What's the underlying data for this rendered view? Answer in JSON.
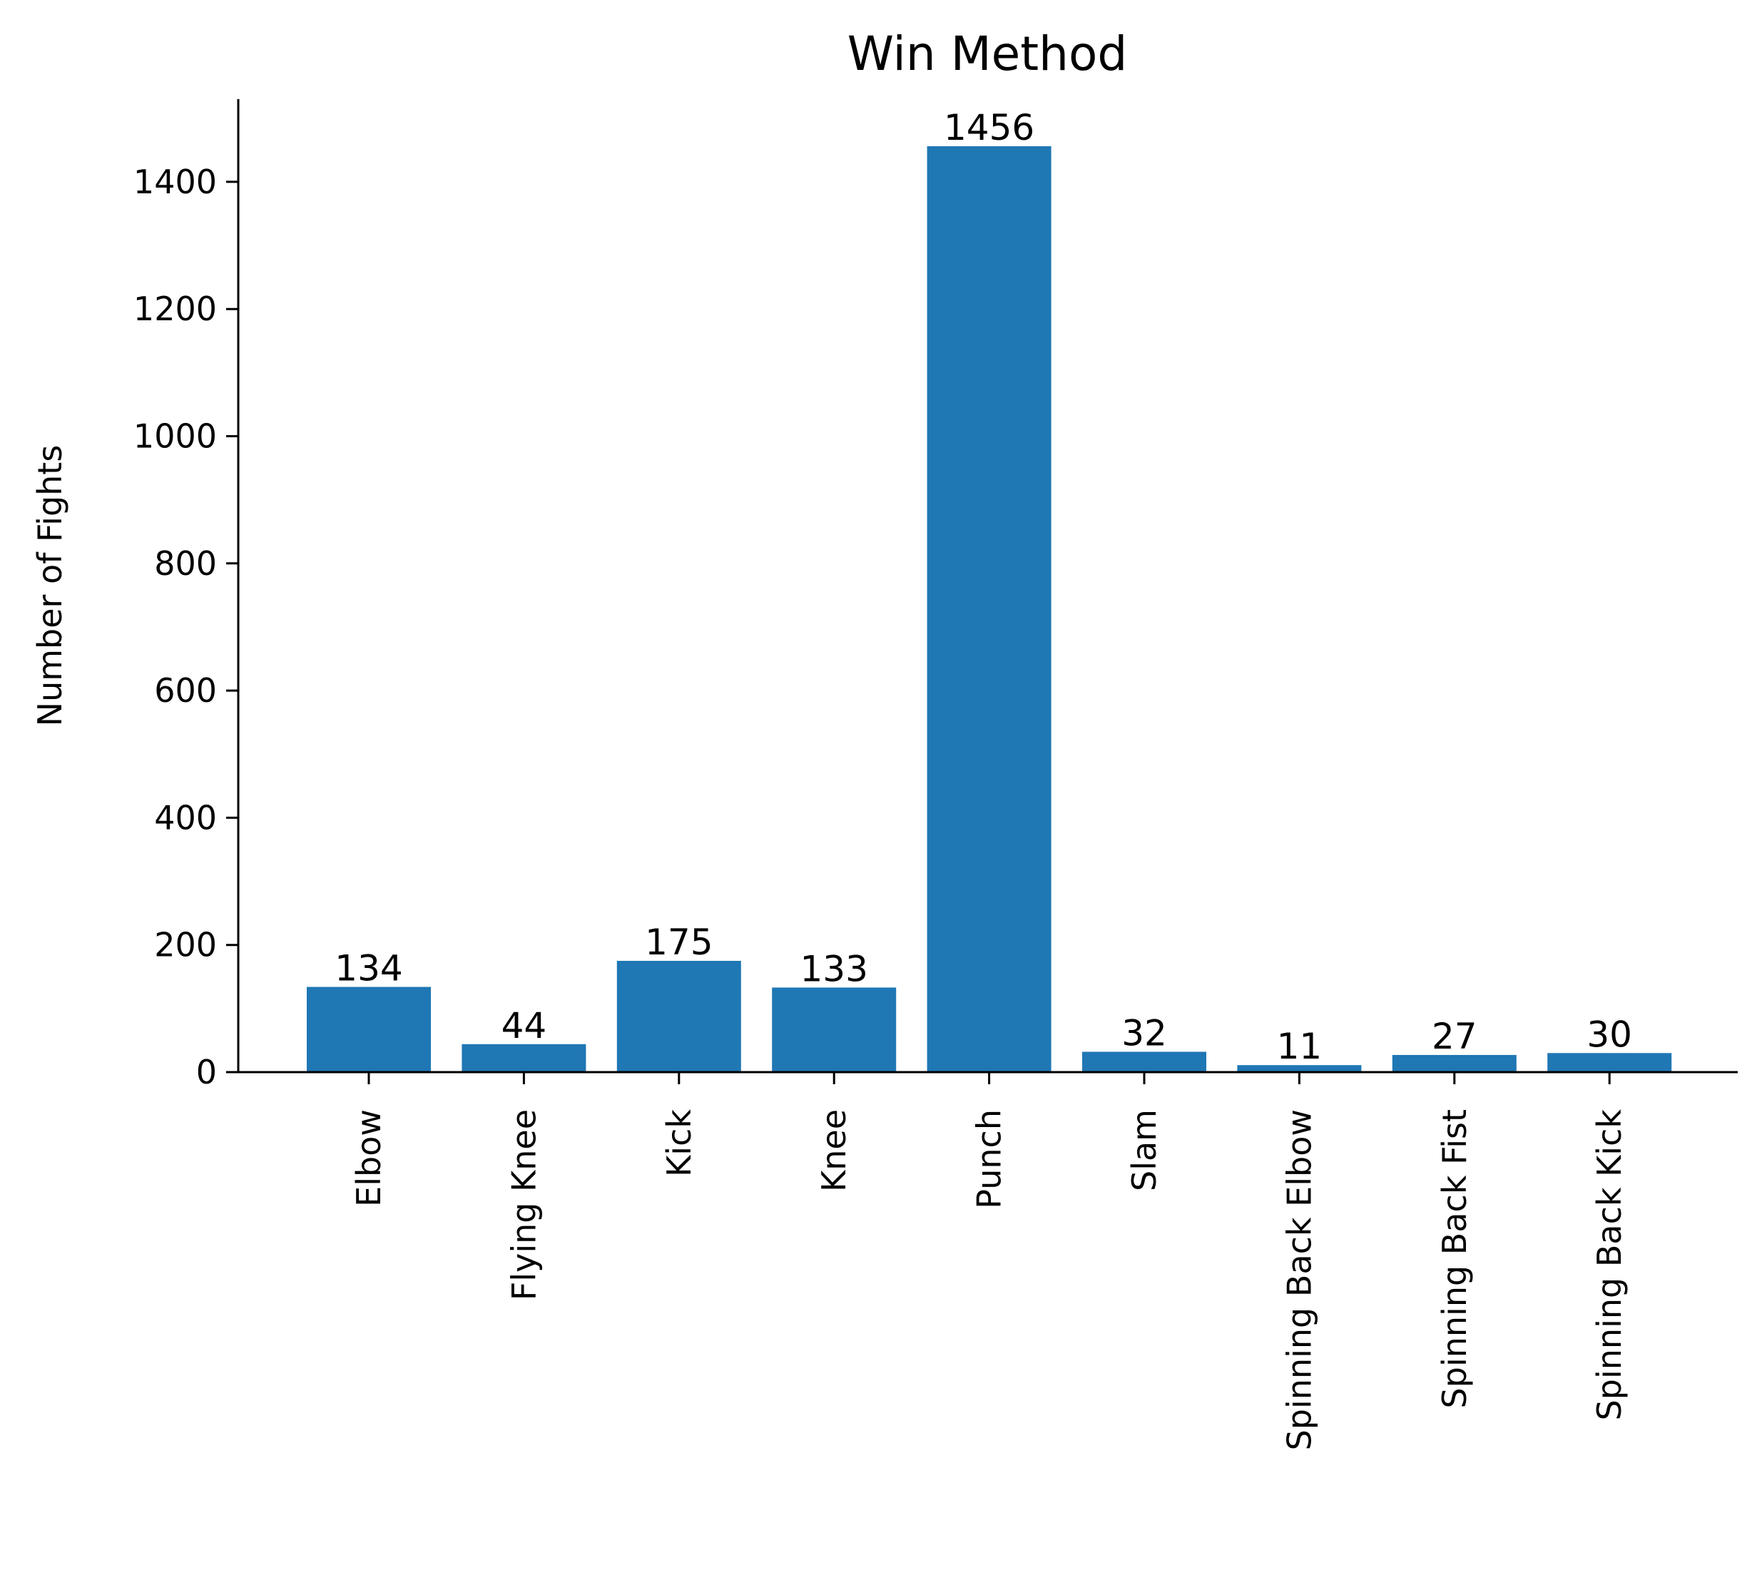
{
  "chart_data": {
    "type": "bar",
    "title": "Win Method",
    "xlabel": "",
    "ylabel": "Number of Fights",
    "categories": [
      "Elbow",
      "Flying Knee",
      "Kick",
      "Knee",
      "Punch",
      "Slam",
      "Spinning Back Elbow",
      "Spinning Back Fist",
      "Spinning Back Kick"
    ],
    "values": [
      134,
      44,
      175,
      133,
      1456,
      32,
      11,
      27,
      30
    ],
    "data_labels": [
      "134",
      "44",
      "175",
      "133",
      "1456",
      "32",
      "11",
      "27",
      "30"
    ],
    "ylim": [
      0,
      1530
    ],
    "yticks": [
      0,
      200,
      400,
      600,
      800,
      1000,
      1200,
      1400
    ],
    "ytick_labels": [
      "0",
      "200",
      "400",
      "600",
      "800",
      "1000",
      "1200",
      "1400"
    ],
    "bar_color": "#1f77b4",
    "grid": false,
    "legend": "none"
  }
}
